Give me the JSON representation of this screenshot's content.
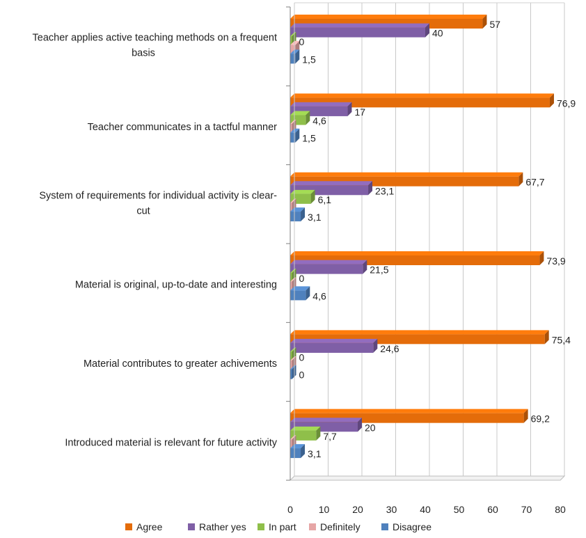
{
  "chart_data": {
    "type": "bar",
    "orientation": "horizontal",
    "style": "3d-clustered",
    "categories": [
      "Teacher applies active teaching methods on a frequent basis",
      "Teacher communicates in a tactful manner",
      "System of requirements for individual activity is clear-cut",
      "Material is original, up-to-date and interesting",
      "Material contributes to greater achivements",
      "Introduced material is relevant for future activity"
    ],
    "category_lines": [
      [
        "Teacher applies active teaching methods on a frequent",
        "basis"
      ],
      [
        "Teacher communicates in a tactful manner"
      ],
      [
        "System of requirements for individual activity is clear-",
        "cut"
      ],
      [
        "Material is original, up-to-date and interesting"
      ],
      [
        "Material contributes to greater achivements"
      ],
      [
        "Introduced material is relevant for future activity"
      ]
    ],
    "series": [
      {
        "name": "Agree",
        "color": "#e46c0a",
        "values": [
          57,
          76.9,
          67.7,
          73.9,
          75.4,
          69.2
        ],
        "labels": [
          "57",
          "76,9",
          "67,7",
          "73,9",
          "75,4",
          "69,2"
        ]
      },
      {
        "name": "Rather yes",
        "color": "#7f5fa6",
        "values": [
          40,
          17,
          23.1,
          21.5,
          24.6,
          20
        ],
        "labels": [
          "40",
          "17",
          "23,1",
          "21,5",
          "24,6",
          "20"
        ]
      },
      {
        "name": "In part",
        "color": "#8fbf4a",
        "values": [
          0,
          4.6,
          6.1,
          0,
          0,
          7.7
        ],
        "labels": [
          "0",
          "4,6",
          "6,1",
          "0",
          "0",
          "7,7"
        ]
      },
      {
        "name": "Definitely",
        "color": "#e6a6a6",
        "values": [
          1.5,
          0,
          0,
          0,
          0,
          0
        ],
        "labels": []
      },
      {
        "name": "Disagree",
        "color": "#4f81bd",
        "values": [
          1.5,
          1.5,
          3.1,
          4.6,
          0,
          3.1
        ],
        "labels": [
          "1,5",
          "1,5",
          "3,1",
          "4,6",
          "0",
          "3,1"
        ]
      }
    ],
    "xlim": [
      0,
      80
    ],
    "xticks": [
      0,
      10,
      20,
      30,
      40,
      50,
      60,
      70,
      80
    ],
    "grid": true,
    "legend_position": "bottom",
    "title": "",
    "xlabel": "",
    "ylabel": ""
  }
}
